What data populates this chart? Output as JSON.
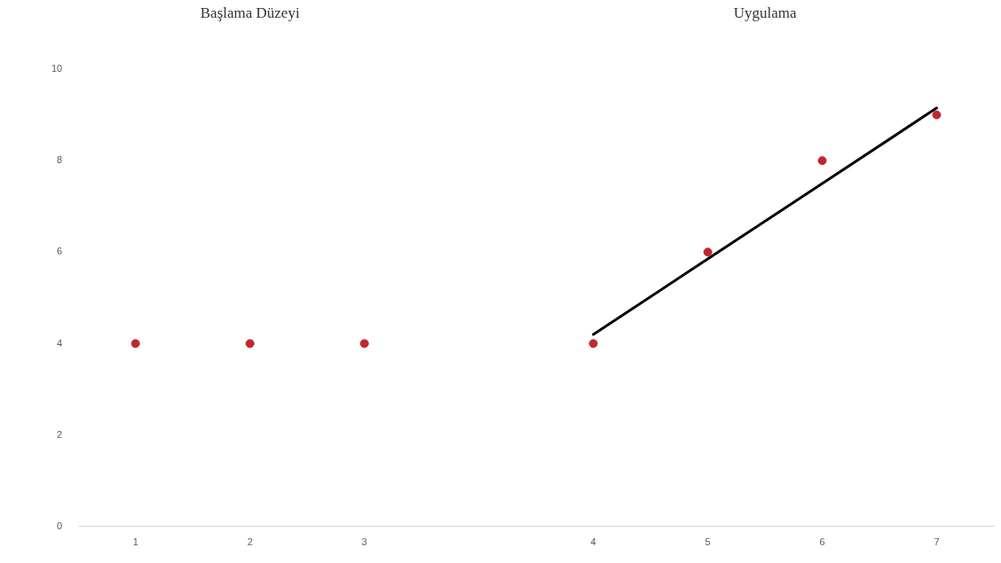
{
  "chart_data": {
    "type": "scatter",
    "categories": [
      "1",
      "2",
      "3",
      null,
      "4",
      "5",
      "6",
      "7"
    ],
    "series": [
      {
        "color": "#c0272d",
        "values": [
          4,
          4,
          4,
          null,
          4,
          6,
          8,
          9
        ]
      },
      {
        "type": "line",
        "marker": "none",
        "color": "#000000",
        "values": [
          null,
          null,
          null,
          null,
          4.2,
          5.85,
          7.5,
          9.15
        ]
      }
    ],
    "ylim": [
      0,
      10
    ],
    "yticks": [
      0,
      2,
      4,
      6,
      8,
      10
    ],
    "grid": false,
    "legend": false,
    "marker": "circle",
    "line_style": "solid",
    "annotations": [
      "Başlama Düzeyi",
      "Uygulama"
    ]
  }
}
